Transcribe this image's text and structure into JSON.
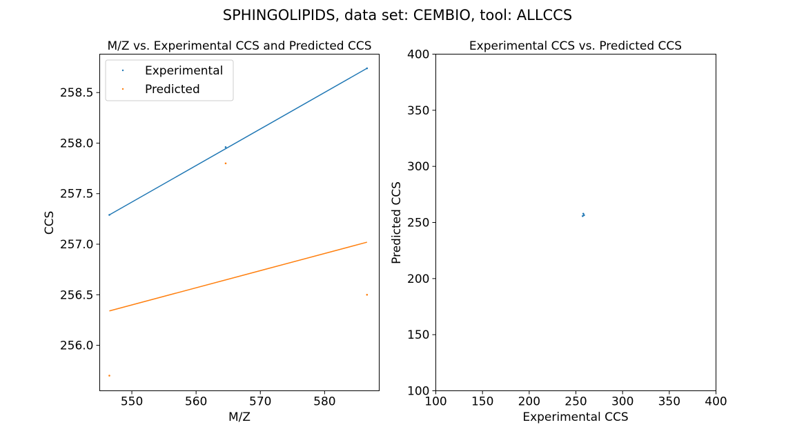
{
  "figure": {
    "suptitle": "SPHINGOLIPIDS, data set: CEMBIO, tool: ALLCCS"
  },
  "colors": {
    "experimental": "#1f77b4",
    "predicted": "#ff7f0e",
    "axis": "#000000"
  },
  "chart_data": [
    {
      "type": "scatter",
      "title": "M/Z vs. Experimental CCS and Predicted CCS",
      "xlabel": "M/Z",
      "ylabel": "CCS",
      "xlim": [
        545.0,
        588.5
      ],
      "ylim": [
        255.55,
        258.88
      ],
      "xticks": [
        550,
        560,
        570,
        580
      ],
      "xtick_labels": [
        "550",
        "560",
        "570",
        "580"
      ],
      "yticks": [
        256.0,
        256.5,
        257.0,
        257.5,
        258.0,
        258.5
      ],
      "ytick_labels": [
        "256.0",
        "256.5",
        "257.0",
        "257.5",
        "258.0",
        "258.5"
      ],
      "grid": false,
      "legend": {
        "placement": "top-left",
        "entries": [
          "Experimental",
          "Predicted"
        ]
      },
      "series": [
        {
          "name": "Experimental",
          "color": "#1f77b4",
          "x": [
            546.5,
            564.6,
            586.6
          ],
          "y": [
            257.29,
            257.96,
            258.74
          ]
        },
        {
          "name": "Predicted",
          "color": "#ff7f0e",
          "x": [
            546.5,
            564.6,
            586.6
          ],
          "y": [
            255.7,
            257.8,
            256.5
          ]
        }
      ],
      "fit_lines": [
        {
          "series": "Experimental",
          "color": "#1f77b4",
          "x": [
            546.5,
            586.6
          ],
          "y": [
            257.29,
            258.74
          ]
        },
        {
          "series": "Predicted",
          "color": "#ff7f0e",
          "x": [
            546.5,
            586.6
          ],
          "y": [
            256.34,
            257.02
          ]
        }
      ]
    },
    {
      "type": "scatter",
      "title": "Experimental CCS vs. Predicted CCS",
      "xlabel": "Experimental CCS",
      "ylabel": "Predicted CCS",
      "xlim": [
        100,
        400
      ],
      "ylim": [
        100,
        400
      ],
      "xticks": [
        100,
        150,
        200,
        250,
        300,
        350,
        400
      ],
      "xtick_labels": [
        "100",
        "150",
        "200",
        "250",
        "300",
        "350",
        "400"
      ],
      "yticks": [
        100,
        150,
        200,
        250,
        300,
        350,
        400
      ],
      "ytick_labels": [
        "100",
        "150",
        "200",
        "250",
        "300",
        "350",
        "400"
      ],
      "grid": false,
      "series": [
        {
          "color": "#1f77b4",
          "x": [
            257.29,
            257.96,
            258.74
          ],
          "y": [
            255.7,
            257.8,
            256.5
          ]
        }
      ]
    }
  ]
}
